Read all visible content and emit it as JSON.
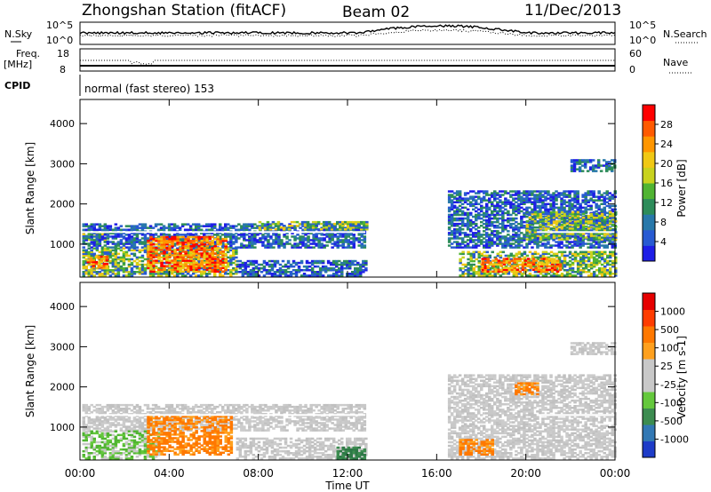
{
  "header": {
    "station": "Zhongshan Station (fitACF)",
    "beam": "Beam 02",
    "date": "11/Dec/2013"
  },
  "strips": {
    "nsky_label": "N.Sky",
    "nsearch_label": "N.Search",
    "noise_ticks_left": [
      "10^5",
      "10^0"
    ],
    "noise_ticks_right": [
      "10^5",
      "10^0"
    ],
    "freq_label_1": "Freq.",
    "freq_label_2": "[MHz]",
    "freq_ticks": [
      "18",
      "8"
    ],
    "nave_label": "Nave",
    "nave_ticks": [
      "60",
      "0"
    ],
    "cpid_label": "CPID",
    "cpid_text": "normal (fast stereo) 153"
  },
  "x_axis": {
    "label": "Time UT",
    "ticks": [
      "00:00",
      "04:00",
      "08:00",
      "12:00",
      "16:00",
      "20:00",
      "00:00"
    ]
  },
  "chart_data": [
    {
      "type": "heatmap",
      "quantity": "Power",
      "ylabel": "Slant Range [km]",
      "xlabel": "",
      "x_range_hours": [
        0,
        24
      ],
      "ylim": [
        180,
        4600
      ],
      "yticks": [
        "1000",
        "2000",
        "3000",
        "4000"
      ],
      "colorbar_label": "Power [dB]",
      "colorbar_ticks": [
        "4",
        "8",
        "12",
        "16",
        "20",
        "24",
        "28"
      ],
      "colorbar_colors": [
        "#1e1ee6",
        "#285ad2",
        "#2878aa",
        "#2d8c5a",
        "#50b432",
        "#c8d21e",
        "#f0c814",
        "#ff9600",
        "#ff5a00",
        "#ff0000"
      ],
      "regions": [
        {
          "t0": 0.1,
          "t1": 12.8,
          "r0": 1250,
          "r1": 1500,
          "level": "low"
        },
        {
          "t0": 0.1,
          "t1": 1.2,
          "r0": 1050,
          "r1": 1250,
          "level": "mid"
        },
        {
          "t0": 0.1,
          "t1": 12.8,
          "r0": 900,
          "r1": 1250,
          "level": "low"
        },
        {
          "t0": 0.1,
          "t1": 7.0,
          "r0": 200,
          "r1": 900,
          "level": "mid"
        },
        {
          "t0": 0.3,
          "t1": 1.2,
          "r0": 400,
          "r1": 700,
          "level": "high"
        },
        {
          "t0": 3.0,
          "t1": 6.5,
          "r0": 300,
          "r1": 1200,
          "level": "high"
        },
        {
          "t0": 7.0,
          "t1": 12.8,
          "r0": 200,
          "r1": 600,
          "level": "low"
        },
        {
          "t0": 8.0,
          "t1": 12.8,
          "r0": 1350,
          "r1": 1550,
          "level": "mid"
        },
        {
          "t0": 17.0,
          "t1": 24.0,
          "r0": 200,
          "r1": 800,
          "level": "mid"
        },
        {
          "t0": 18.0,
          "t1": 21.5,
          "r0": 300,
          "r1": 650,
          "level": "high"
        },
        {
          "t0": 16.5,
          "t1": 24.0,
          "r0": 900,
          "r1": 2300,
          "level": "low"
        },
        {
          "t0": 20.0,
          "t1": 24.0,
          "r0": 1100,
          "r1": 1800,
          "level": "mid"
        },
        {
          "t0": 22.0,
          "t1": 24.0,
          "r0": 2800,
          "r1": 3100,
          "level": "low"
        }
      ]
    },
    {
      "type": "heatmap",
      "quantity": "Velocity",
      "ylabel": "Slant Range [km]",
      "xlabel": "",
      "x_range_hours": [
        0,
        24
      ],
      "ylim": [
        180,
        4600
      ],
      "yticks": [
        "1000",
        "2000",
        "3000",
        "4000"
      ],
      "colorbar_label": "Velocity [m s-1]",
      "colorbar_ticks": [
        "1000",
        "500",
        "100",
        "25",
        "-25",
        "-100",
        "-500",
        "-1000"
      ],
      "colorbar_colors": [
        "#1e3cc8",
        "#3278b4",
        "#3c8c50",
        "#64c83c",
        "#c8c8c8",
        "#c8c8c8",
        "#ffa01e",
        "#ff7800",
        "#ff3c00",
        "#e60000"
      ],
      "regions": [
        {
          "t0": 0.1,
          "t1": 12.8,
          "r0": 900,
          "r1": 1550,
          "level": "gray"
        },
        {
          "t0": 0.1,
          "t1": 3.5,
          "r0": 200,
          "r1": 900,
          "level": "green"
        },
        {
          "t0": 3.0,
          "t1": 6.8,
          "r0": 300,
          "r1": 1250,
          "level": "orange"
        },
        {
          "t0": 7.0,
          "t1": 12.8,
          "r0": 200,
          "r1": 700,
          "level": "gray"
        },
        {
          "t0": 11.5,
          "t1": 12.8,
          "r0": 200,
          "r1": 500,
          "level": "darkgreen"
        },
        {
          "t0": 16.5,
          "t1": 24.0,
          "r0": 200,
          "r1": 2300,
          "level": "gray"
        },
        {
          "t0": 17.0,
          "t1": 18.5,
          "r0": 300,
          "r1": 700,
          "level": "orange"
        },
        {
          "t0": 19.5,
          "t1": 20.5,
          "r0": 1800,
          "r1": 2100,
          "level": "orange"
        },
        {
          "t0": 22.0,
          "t1": 24.0,
          "r0": 2800,
          "r1": 3100,
          "level": "gray"
        }
      ]
    }
  ]
}
